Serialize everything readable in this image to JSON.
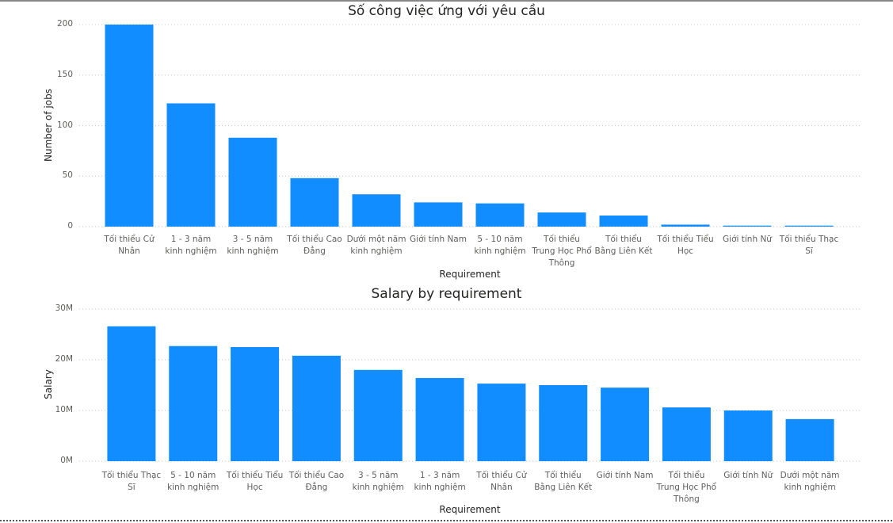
{
  "chart_data": [
    {
      "type": "bar",
      "title": "Số công việc ứng với yêu cầu",
      "x_label": "Requirement",
      "y_label": "Number of jobs",
      "categories": [
        "Tối thiểu Cử Nhân",
        "1 - 3 năm kinh nghiệm",
        "3 - 5 năm kinh nghiệm",
        "Tối thiểu Cao Đẳng",
        "Dưới một năm kinh nghiệm",
        "Giới tính Nam",
        "5 - 10 năm kinh nghiệm",
        "Tối thiểu Trung Học Phổ Thông",
        "Tối thiểu Bằng Liên Kết",
        "Tối thiểu Tiểu Học",
        "Giới tính Nữ",
        "Tối thiểu Thạc Sĩ"
      ],
      "values": [
        200,
        122,
        88,
        48,
        32,
        24,
        23,
        14,
        11,
        2,
        1,
        1
      ],
      "color": "#118dff",
      "ylim": [
        0,
        200
      ],
      "yticks": [
        0,
        50,
        100,
        150,
        200
      ],
      "grid": true
    },
    {
      "type": "bar",
      "title": "Salary by requirement",
      "x_label": "Requirement",
      "y_label": "Salary",
      "categories": [
        "Tối thiểu Thạc Sĩ",
        "5 - 10 năm kinh nghiệm",
        "Tối thiểu Tiểu Học",
        "Tối thiểu Cao Đẳng",
        "3 - 5 năm kinh nghiệm",
        "1 - 3 năm kinh nghiệm",
        "Tối thiểu Cử Nhân",
        "Tối thiểu Bằng Liên Kết",
        "Giới tính Nam",
        "Tối thiểu Trung Học Phổ Thông",
        "Giới tính Nữ",
        "Dưới một năm kinh nghiệm"
      ],
      "values": [
        26600000,
        22700000,
        22500000,
        20800000,
        18000000,
        16400000,
        15300000,
        15000000,
        14500000,
        10600000,
        10000000,
        8300000
      ],
      "color": "#118dff",
      "ylim": [
        0,
        30000000
      ],
      "yticks": [
        {
          "value": 0,
          "label": "0M"
        },
        {
          "value": 10000000,
          "label": "10M"
        },
        {
          "value": 20000000,
          "label": "20M"
        },
        {
          "value": 30000000,
          "label": "30M"
        }
      ],
      "grid": true
    }
  ]
}
